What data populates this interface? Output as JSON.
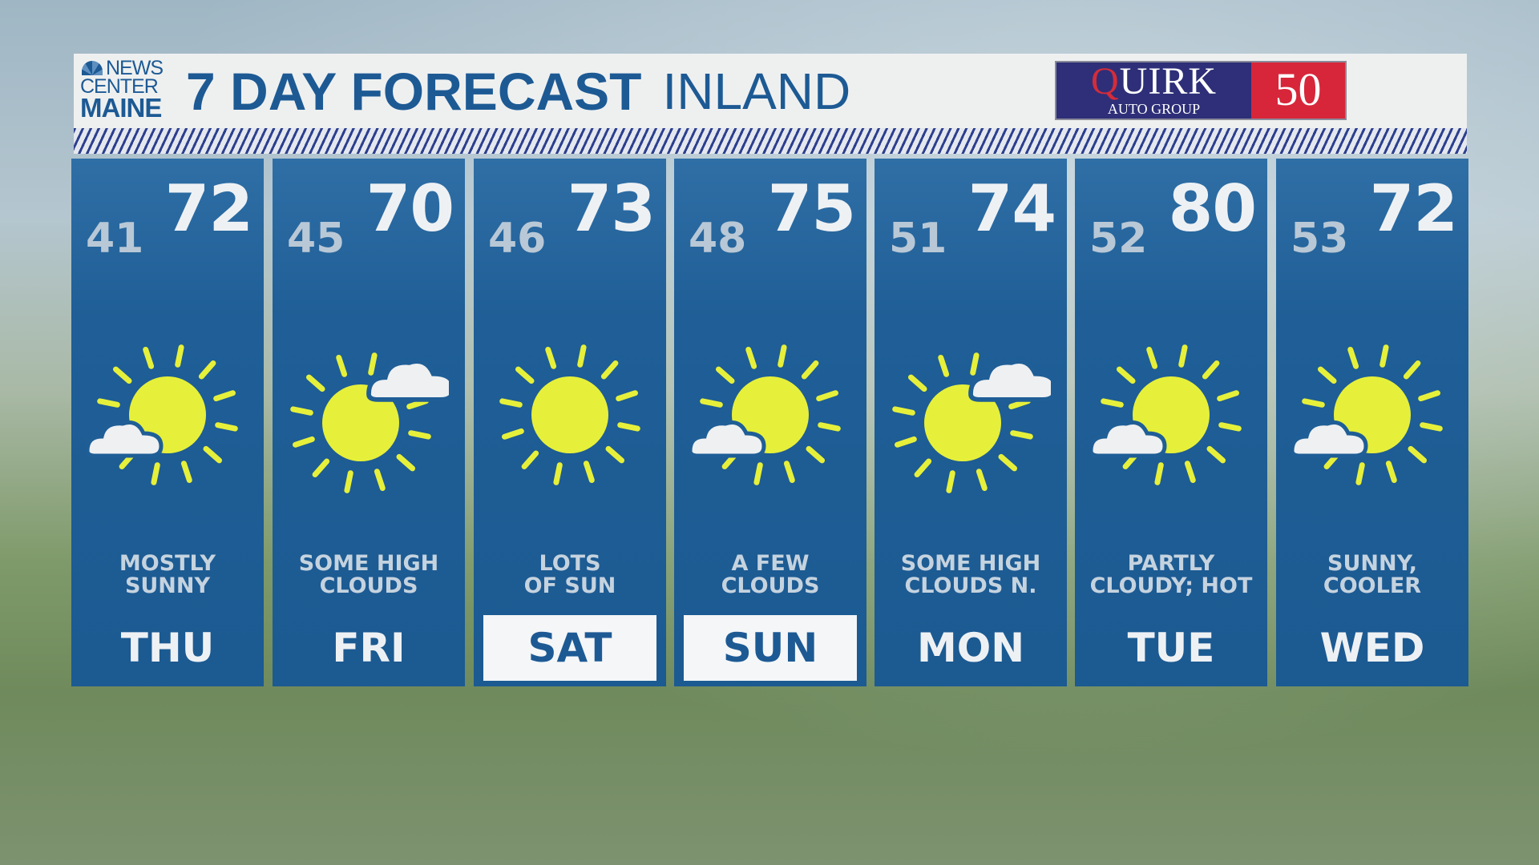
{
  "header": {
    "logo": {
      "line1": "NEWS",
      "line2": "CENTER",
      "line3": "MAINE"
    },
    "title": "7 DAY FORECAST",
    "subtitle": "INLAND",
    "sponsor": {
      "name_first": "Q",
      "name_rest": "UIRK",
      "tagline": "AUTO GROUP",
      "anniversary": "50"
    }
  },
  "colors": {
    "panel": "#1f5e96",
    "title": "#1d5a94",
    "sun": "#e6f03a",
    "cloud": "#eef0f2"
  },
  "days": [
    {
      "day": "THU",
      "lo": "41",
      "hi": "72",
      "condition_line1": "MOSTLY",
      "condition_line2": "SUNNY",
      "icon": "sun-cloud-lower-left-icon",
      "highlighted": false
    },
    {
      "day": "FRI",
      "lo": "45",
      "hi": "70",
      "condition_line1": "SOME HIGH",
      "condition_line2": "CLOUDS",
      "icon": "sun-cloud-upper-right-icon",
      "highlighted": false
    },
    {
      "day": "SAT",
      "lo": "46",
      "hi": "73",
      "condition_line1": "LOTS",
      "condition_line2": "OF SUN",
      "icon": "sun-icon",
      "highlighted": true
    },
    {
      "day": "SUN",
      "lo": "48",
      "hi": "75",
      "condition_line1": "A FEW",
      "condition_line2": "CLOUDS",
      "icon": "sun-cloud-lower-left-icon",
      "highlighted": true
    },
    {
      "day": "MON",
      "lo": "51",
      "hi": "74",
      "condition_line1": "SOME HIGH",
      "condition_line2": "CLOUDS N.",
      "icon": "sun-cloud-upper-right-icon",
      "highlighted": false
    },
    {
      "day": "TUE",
      "lo": "52",
      "hi": "80",
      "condition_line1": "PARTLY",
      "condition_line2": "CLOUDY; HOT",
      "icon": "sun-cloud-lower-left-icon",
      "highlighted": false
    },
    {
      "day": "WED",
      "lo": "53",
      "hi": "72",
      "condition_line1": "SUNNY,",
      "condition_line2": "COOLER",
      "icon": "sun-cloud-lower-left-icon",
      "highlighted": false
    }
  ]
}
